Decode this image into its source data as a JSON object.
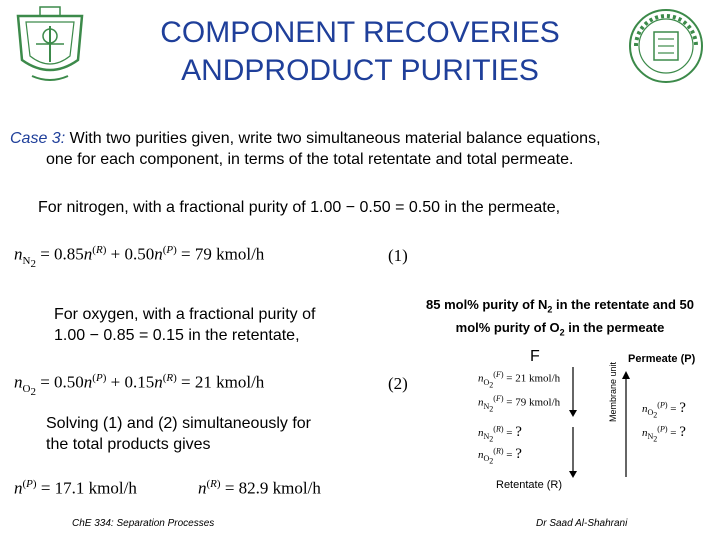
{
  "title": {
    "line1": "COMPONENT RECOVERIES",
    "line2": "ANDPRODUCT PURITIES"
  },
  "case3": {
    "lead": "Case 3:",
    "line1": " With two purities given, write two simultaneous material balance equations,",
    "line2": "one for each component, in terms of the total retentate and total permeate."
  },
  "nitrogen_text": "For nitrogen, with a fractional purity of 1.00 − 0.50 = 0.50 in the permeate,",
  "eq1": {
    "lhs_coef": "0.85",
    "rhs_coef": "0.50",
    "total": "79 kmol/h",
    "number": "(1)"
  },
  "oxygen_text": {
    "line1": "For oxygen, with a fractional purity of",
    "line2": "1.00 − 0.85 = 0.15 in the retentate,"
  },
  "eq2": {
    "lhs_coef": "0.50",
    "rhs_coef": "0.15",
    "total": "21 kmol/h",
    "number": "(2)"
  },
  "purity_note": {
    "line1": "85 mol% purity of N",
    "mid1": " in the retentate and 50",
    "line2": "mol% purity of O",
    "end2": " in the permeate"
  },
  "solving_text": {
    "line1": "Solving (1) and (2) simultaneously for",
    "line2": "the total products gives"
  },
  "results": {
    "permeate": "17.1 kmol/h",
    "retentate": "82.9 kmol/h"
  },
  "diagram": {
    "feed_label": "F",
    "permeate_label": "Permeate (P)",
    "retentate_label": "Retentate (R)",
    "membrane_label": "Membrane unit",
    "feed_o2": "21 kmol/h",
    "feed_n2": "79 kmol/h",
    "unknown": "?"
  },
  "footer": {
    "course": "ChE 334: Separation Processes",
    "author": "Dr Saad Al-Shahrani"
  },
  "colors": {
    "title": "#1f3f9a",
    "logo_green": "#3c8a4a"
  },
  "icons": {
    "left_logo": "university-emblem-icon",
    "right_logo": "department-seal-icon"
  }
}
